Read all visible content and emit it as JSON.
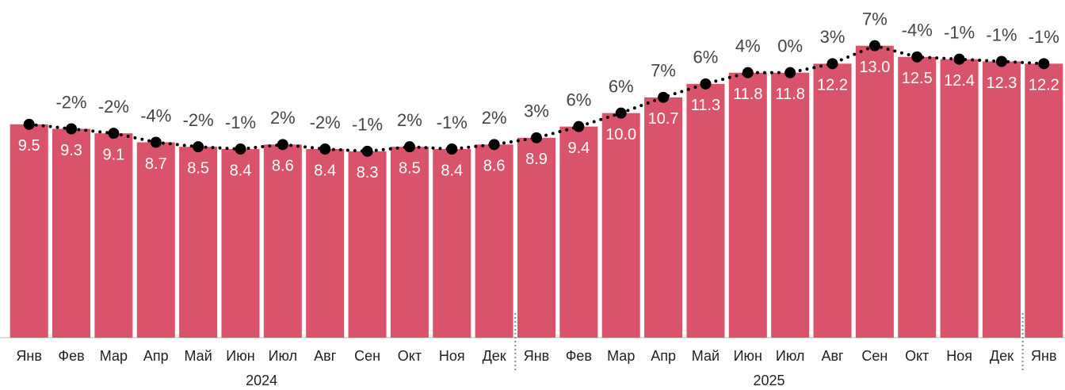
{
  "chart_data": {
    "type": "bar",
    "categories": [
      "Янв",
      "Фев",
      "Мар",
      "Апр",
      "Май",
      "Июн",
      "Июл",
      "Авг",
      "Сен",
      "Окт",
      "Ноя",
      "Дек",
      "Янв",
      "Фев",
      "Мар",
      "Апр",
      "Май",
      "Июн",
      "Июл",
      "Авг",
      "Сен",
      "Окт",
      "Ноя",
      "Дек",
      "Янв"
    ],
    "groups": [
      {
        "label": "2024",
        "start": 0,
        "end": 11
      },
      {
        "label": "2025",
        "start": 12,
        "end": 23
      }
    ],
    "values": [
      9.5,
      9.3,
      9.1,
      8.7,
      8.5,
      8.4,
      8.6,
      8.4,
      8.3,
      8.5,
      8.4,
      8.6,
      8.9,
      9.4,
      10.0,
      10.7,
      11.3,
      11.8,
      11.8,
      12.2,
      13.0,
      12.5,
      12.4,
      12.3,
      12.2
    ],
    "value_labels": [
      "9.5",
      "9.3",
      "9.1",
      "8.7",
      "8.5",
      "8.4",
      "8.6",
      "8.4",
      "8.3",
      "8.5",
      "8.4",
      "8.6",
      "8.9",
      "9.4",
      "10.0",
      "10.7",
      "11.3",
      "11.8",
      "11.8",
      "12.2",
      "13.0",
      "12.5",
      "12.4",
      "12.3",
      "12.2"
    ],
    "change": {
      "values": [
        null,
        -2,
        -2,
        -4,
        -2,
        -1,
        2,
        -2,
        -1,
        2,
        -1,
        2,
        3,
        6,
        6,
        7,
        6,
        4,
        0,
        3,
        7,
        -4,
        -1,
        -1,
        -1
      ],
      "value_labels": [
        null,
        "-2%",
        "-2%",
        "-4%",
        "-2%",
        "-1%",
        "2%",
        "-2%",
        "-1%",
        "2%",
        "-1%",
        "2%",
        "3%",
        "6%",
        "6%",
        "7%",
        "6%",
        "4%",
        "0%",
        "3%",
        "7%",
        "-4%",
        "-1%",
        "-1%",
        "-1%"
      ]
    },
    "color": "#d9546b",
    "ylim": [
      0,
      15
    ]
  }
}
